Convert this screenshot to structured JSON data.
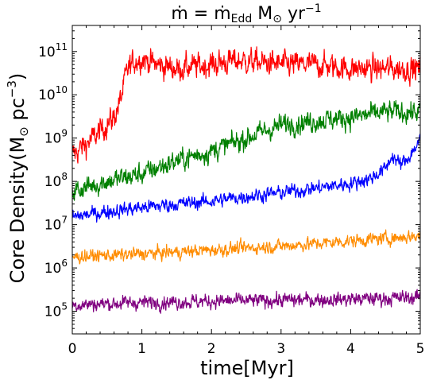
{
  "chart_data": {
    "type": "line",
    "title_parts": {
      "mdot": "ṁ",
      "eq": " = ",
      "mdot2": "ṁ",
      "edd": "Edd",
      "msun": " M",
      "sun": "⊙",
      "yr": " yr",
      "yr_exp": "−1"
    },
    "xlabel": "time[Myr]",
    "ylabel_parts": {
      "main": "Core Density(M",
      "sun": "⊙",
      "pc": " pc",
      "pc_exp": "−3",
      "close": ")"
    },
    "xlim": [
      0,
      5
    ],
    "ylim": [
      30000,
      400000000000
    ],
    "yscale": "log",
    "x_ticks": [
      0,
      1,
      2,
      3,
      4,
      5
    ],
    "x_tick_labels": [
      "0",
      "1",
      "2",
      "3",
      "4",
      "5"
    ],
    "y_ticks": [
      100000,
      1000000,
      10000000,
      100000000,
      1000000000,
      10000000000,
      100000000000
    ],
    "y_tick_labels": [
      {
        "base": "10",
        "exp": "5"
      },
      {
        "base": "10",
        "exp": "6"
      },
      {
        "base": "10",
        "exp": "7"
      },
      {
        "base": "10",
        "exp": "8"
      },
      {
        "base": "10",
        "exp": "9"
      },
      {
        "base": "10",
        "exp": "10"
      },
      {
        "base": "10",
        "exp": "11"
      }
    ],
    "grid": false,
    "legend": "none",
    "series": [
      {
        "color": "#ff0000",
        "noise_dex": 0.35,
        "x": [
          0,
          0.3,
          0.6,
          0.7,
          0.75,
          0.8,
          0.9,
          1.0,
          1.2,
          1.5,
          2.0,
          2.3,
          2.5,
          3.0,
          3.5,
          4.0,
          4.5,
          5.0
        ],
        "y": [
          400000000,
          1000000000,
          3000000000,
          8000000000,
          20000000000,
          40000000000,
          60000000000,
          70000000000,
          50000000000,
          40000000000,
          50000000000,
          60000000000,
          60000000000,
          50000000000,
          50000000000,
          40000000000,
          40000000000,
          40000000000
        ]
      },
      {
        "color": "#008000",
        "noise_dex": 0.3,
        "x": [
          0,
          0.5,
          1.0,
          1.5,
          2.0,
          2.5,
          3.0,
          3.5,
          4.0,
          4.5,
          5.0
        ],
        "y": [
          60000000,
          100000000,
          150000000,
          300000000,
          500000000,
          1000000000,
          2000000000,
          2500000000,
          3000000000,
          4000000000,
          4000000000
        ]
      },
      {
        "color": "#0000ff",
        "noise_dex": 0.2,
        "x": [
          0,
          0.5,
          1.0,
          1.5,
          2.0,
          2.5,
          3.0,
          3.5,
          4.0,
          4.3,
          4.5,
          4.6,
          4.7,
          4.8,
          5.0
        ],
        "y": [
          15000000,
          20000000,
          25000000,
          30000000,
          35000000,
          45000000,
          55000000,
          70000000,
          90000000,
          120000000,
          200000000,
          400000000,
          250000000,
          300000000,
          900000000
        ]
      },
      {
        "color": "#ff8c00",
        "noise_dex": 0.18,
        "x": [
          0,
          1,
          2,
          3,
          4,
          5
        ],
        "y": [
          1800000,
          2100000,
          2600000,
          3200000,
          4200000,
          5500000
        ]
      },
      {
        "color": "#800080",
        "noise_dex": 0.2,
        "x": [
          0,
          1,
          2,
          3,
          4,
          5
        ],
        "y": [
          140000,
          160000,
          170000,
          180000,
          190000,
          210000
        ]
      }
    ]
  }
}
